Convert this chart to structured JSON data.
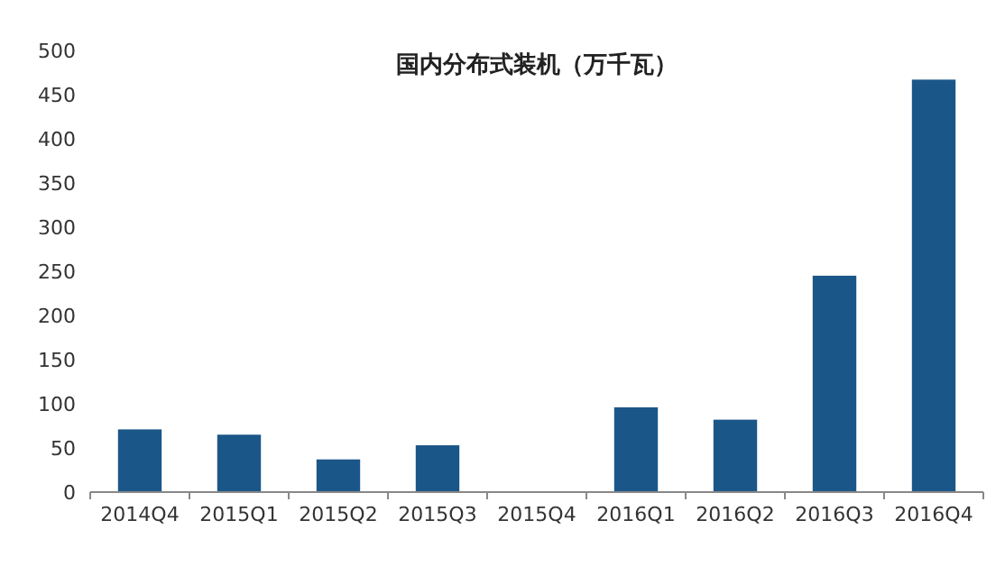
{
  "chart_data": {
    "type": "bar",
    "title": "国内分布式装机（万千瓦）",
    "categories": [
      "2014Q4",
      "2015Q1",
      "2015Q2",
      "2015Q3",
      "2015Q4",
      "2016Q1",
      "2016Q2",
      "2016Q3",
      "2016Q4"
    ],
    "values": [
      71,
      65,
      37,
      53,
      null,
      96,
      82,
      245,
      467
    ],
    "color": "#1b5689",
    "ylim": [
      0,
      500
    ],
    "yticks": [
      0,
      50,
      100,
      150,
      200,
      250,
      300,
      350,
      400,
      450,
      500
    ],
    "grid": false
  }
}
